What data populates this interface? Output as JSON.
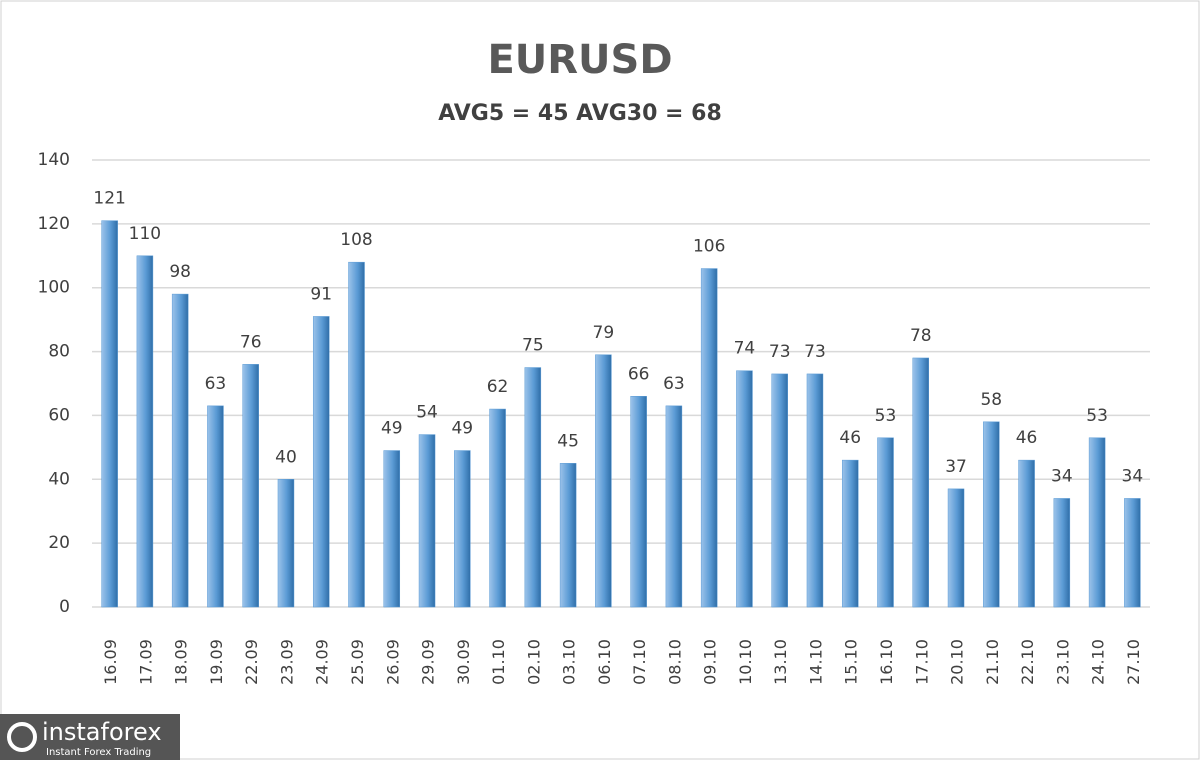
{
  "chart_data": {
    "type": "bar",
    "title": "EURUSD",
    "subtitle": "AVG5 = 45 AVG30 = 68",
    "categories": [
      "16.09",
      "17.09",
      "18.09",
      "19.09",
      "22.09",
      "23.09",
      "24.09",
      "25.09",
      "26.09",
      "29.09",
      "30.09",
      "01.10",
      "02.10",
      "03.10",
      "06.10",
      "07.10",
      "08.10",
      "09.10",
      "10.10",
      "13.10",
      "14.10",
      "15.10",
      "16.10",
      "17.10",
      "20.10",
      "21.10",
      "22.10",
      "23.10",
      "24.10",
      "27.10"
    ],
    "values": [
      121,
      110,
      98,
      63,
      76,
      40,
      91,
      108,
      49,
      54,
      49,
      62,
      75,
      45,
      79,
      66,
      63,
      106,
      74,
      73,
      73,
      46,
      53,
      78,
      37,
      58,
      46,
      34,
      53,
      34
    ],
    "color": "#5b9bd5",
    "ylim": [
      0,
      140
    ],
    "yticks": [
      0,
      20,
      40,
      60,
      80,
      100,
      120,
      140
    ],
    "grid": true
  },
  "watermark": {
    "brand": "instaforex",
    "tagline": "Instant Forex Trading"
  }
}
